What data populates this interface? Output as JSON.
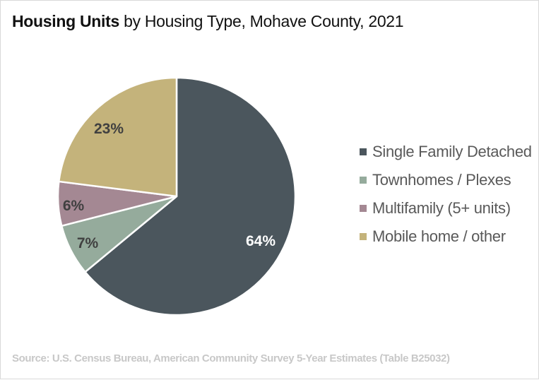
{
  "title": {
    "bold": "Housing Units",
    "rest": " by Housing Type, Mohave County, 2021"
  },
  "legend": [
    {
      "label": "Single Family Detached",
      "color": "#4b565d"
    },
    {
      "label": "Townhomes / Plexes",
      "color": "#95ab9c"
    },
    {
      "label": "Multifamily (5+ units)",
      "color": "#a48893"
    },
    {
      "label": "Mobile home / other",
      "color": "#c4b37b"
    }
  ],
  "labels": {
    "single_family": "64%",
    "townhomes": "7%",
    "multifamily": "6%",
    "mobile": "23%"
  },
  "source": "Source: U.S. Census Bureau, American Community Survey 5-Year Estimates (Table B25032)",
  "chart_data": {
    "type": "pie",
    "title": "Housing Units by Housing Type, Mohave County, 2021",
    "categories": [
      "Single Family Detached",
      "Townhomes / Plexes",
      "Multifamily (5+ units)",
      "Mobile home / other"
    ],
    "values": [
      64,
      7,
      6,
      23
    ],
    "unit": "%",
    "colors": [
      "#4b565d",
      "#95ab9c",
      "#a48893",
      "#c4b37b"
    ],
    "start_angle": "12 o'clock",
    "direction": "clockwise",
    "data_labels": [
      "64%",
      "7%",
      "6%",
      "23%"
    ],
    "legend_position": "right",
    "source": "Source: U.S. Census Bureau, American Community Survey 5-Year Estimates (Table B25032)"
  }
}
